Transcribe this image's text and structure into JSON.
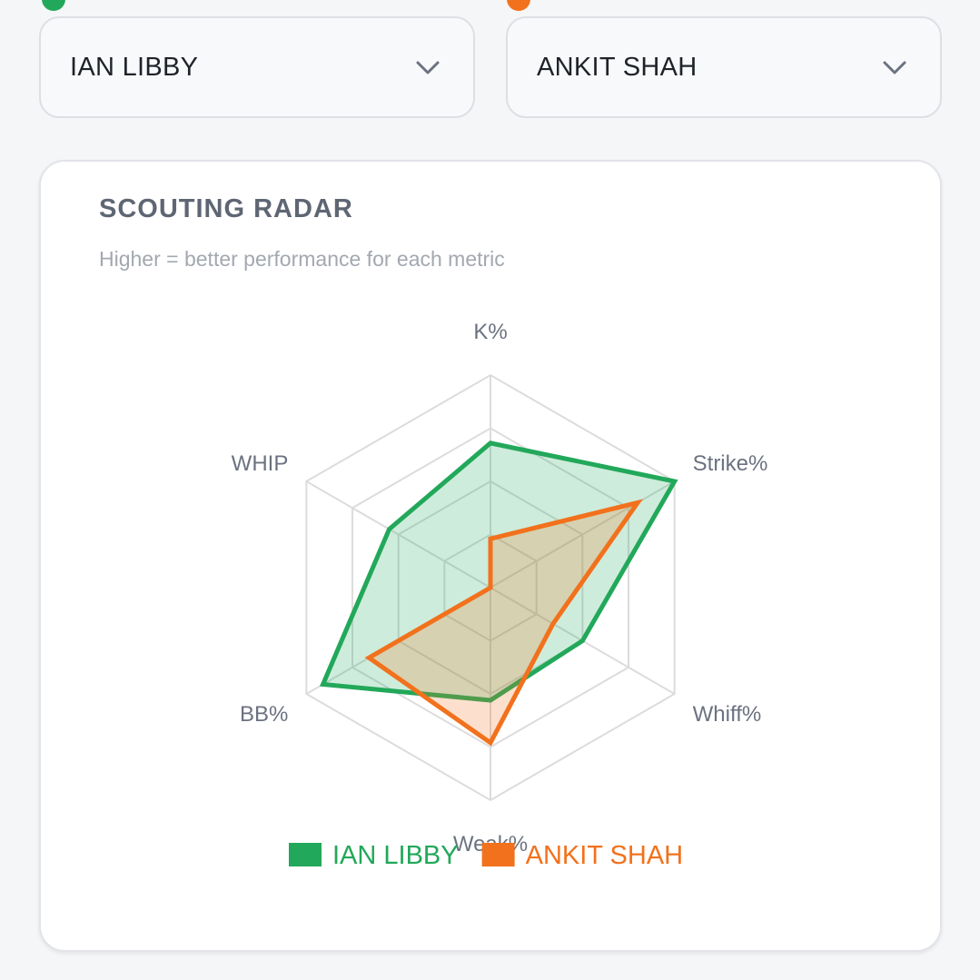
{
  "selectors": [
    {
      "value": "IAN LIBBY",
      "color": "#22a85a"
    },
    {
      "value": "ANKIT SHAH",
      "color": "#f2711c"
    }
  ],
  "card": {
    "title": "SCOUTING RADAR",
    "subtitle": "Higher = better performance for each metric"
  },
  "chart_data": {
    "type": "radar",
    "axes": [
      "K%",
      "Strike%",
      "Whiff%",
      "Weak%",
      "BB%",
      "WHIP"
    ],
    "range": [
      0,
      1
    ],
    "grid_levels": 4,
    "grid": true,
    "legend_position": "bottom",
    "series": [
      {
        "name": "IAN LIBBY",
        "color": "#22a85a",
        "values": [
          0.68,
          1.0,
          0.5,
          0.53,
          0.91,
          0.55
        ]
      },
      {
        "name": "ANKIT SHAH",
        "color": "#f2711c",
        "values": [
          0.23,
          0.8,
          0.34,
          0.73,
          0.66,
          0.0
        ]
      }
    ]
  }
}
